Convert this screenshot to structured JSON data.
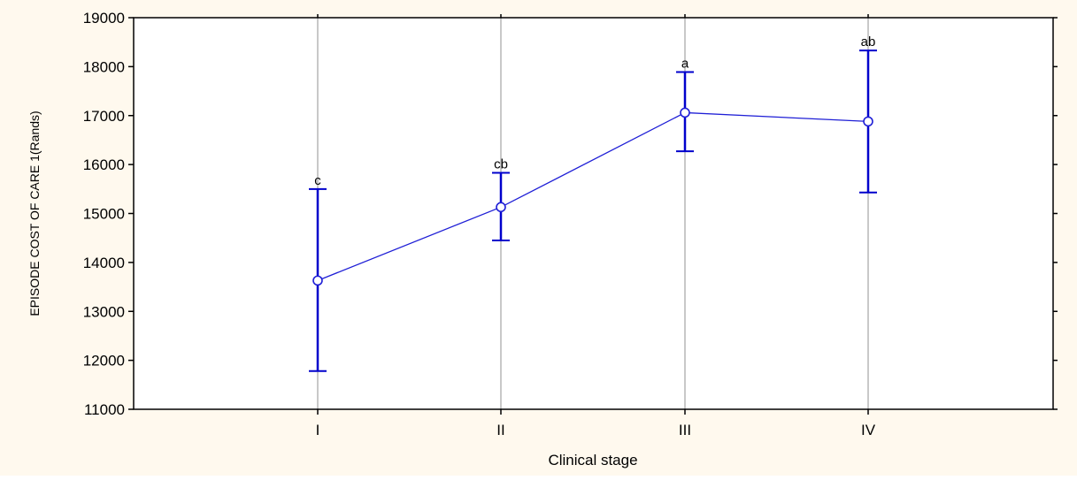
{
  "colors": {
    "background": "#fff9ee",
    "plot_background": "#ffffff",
    "series": "#1f1fd6",
    "error_bar": "#0000cc",
    "grid": "#c8c8c8",
    "axis": "#000000"
  },
  "chart_data": {
    "type": "line",
    "xlabel": "Clinical stage",
    "ylabel": "EPISODE COST OF CARE 1(Rands)",
    "categories": [
      "I",
      "II",
      "III",
      "IV"
    ],
    "ylim": [
      11000,
      19000
    ],
    "yticks": [
      11000,
      12000,
      13000,
      14000,
      15000,
      16000,
      17000,
      18000,
      19000
    ],
    "grid": "vertical",
    "series": [
      {
        "values": [
          13630,
          15130,
          17060,
          16880
        ],
        "lower": [
          11780,
          14450,
          16270,
          15430
        ],
        "upper": [
          15500,
          15830,
          17890,
          18330
        ],
        "annotations": [
          "c",
          "cb",
          "a",
          "ab"
        ]
      }
    ]
  }
}
